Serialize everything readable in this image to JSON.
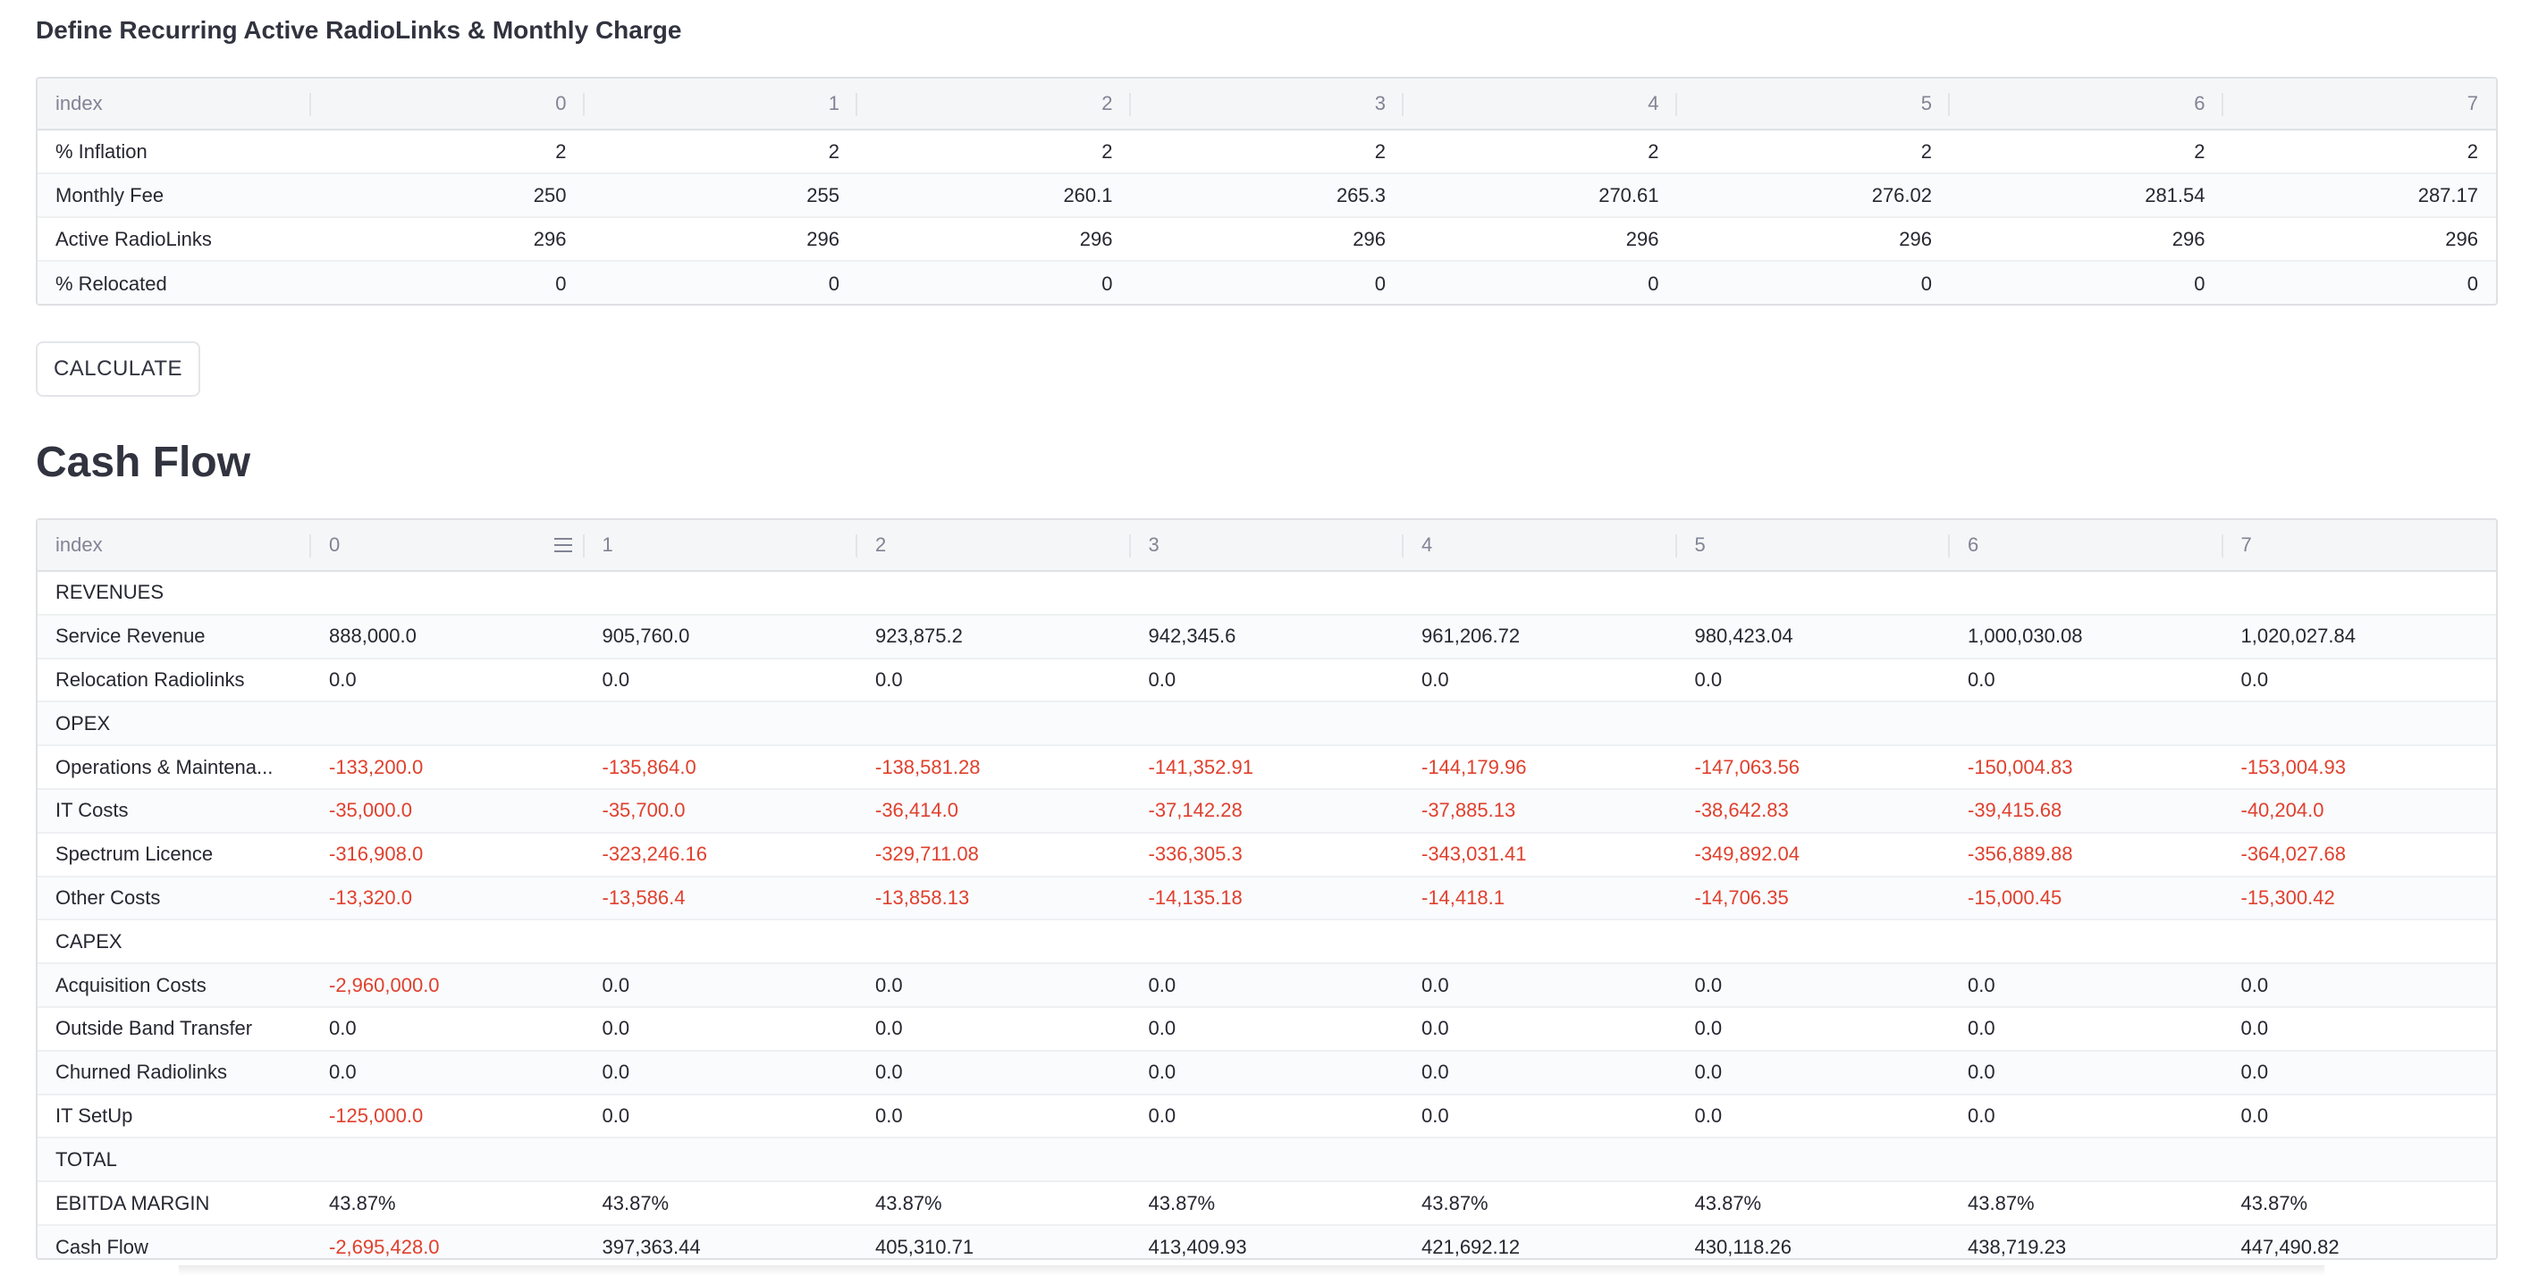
{
  "input_section": {
    "title": "Define Recurring Active RadioLinks & Monthly Charge",
    "columns": [
      "index",
      "0",
      "1",
      "2",
      "3",
      "4",
      "5",
      "6",
      "7"
    ],
    "rows": [
      {
        "label": "% Inflation",
        "values": [
          "2",
          "2",
          "2",
          "2",
          "2",
          "2",
          "2",
          "2"
        ]
      },
      {
        "label": "Monthly Fee",
        "values": [
          "250",
          "255",
          "260.1",
          "265.3",
          "270.61",
          "276.02",
          "281.54",
          "287.17"
        ]
      },
      {
        "label": "Active RadioLinks",
        "values": [
          "296",
          "296",
          "296",
          "296",
          "296",
          "296",
          "296",
          "296"
        ]
      },
      {
        "label": "% Relocated",
        "values": [
          "0",
          "0",
          "0",
          "0",
          "0",
          "0",
          "0",
          "0"
        ]
      }
    ]
  },
  "calculate_button": {
    "label": "CALCULATE"
  },
  "cash_flow": {
    "title": "Cash Flow",
    "columns": [
      "index",
      "0",
      "1",
      "2",
      "3",
      "4",
      "5",
      "6",
      "7"
    ],
    "rows": [
      {
        "label": "REVENUES",
        "values": [
          "",
          "",
          "",
          "",
          "",
          "",
          "",
          ""
        ]
      },
      {
        "label": "Service Revenue",
        "values": [
          "888,000.0",
          "905,760.0",
          "923,875.2",
          "942,345.6",
          "961,206.72",
          "980,423.04",
          "1,000,030.08",
          "1,020,027.84"
        ]
      },
      {
        "label": "Relocation Radiolinks",
        "values": [
          "0.0",
          "0.0",
          "0.0",
          "0.0",
          "0.0",
          "0.0",
          "0.0",
          "0.0"
        ]
      },
      {
        "label": "OPEX",
        "values": [
          "",
          "",
          "",
          "",
          "",
          "",
          "",
          ""
        ]
      },
      {
        "label": "Operations & Maintena...",
        "values": [
          "-133,200.0",
          "-135,864.0",
          "-138,581.28",
          "-141,352.91",
          "-144,179.96",
          "-147,063.56",
          "-150,004.83",
          "-153,004.93"
        ]
      },
      {
        "label": "IT Costs",
        "values": [
          "-35,000.0",
          "-35,700.0",
          "-36,414.0",
          "-37,142.28",
          "-37,885.13",
          "-38,642.83",
          "-39,415.68",
          "-40,204.0"
        ]
      },
      {
        "label": "Spectrum Licence",
        "values": [
          "-316,908.0",
          "-323,246.16",
          "-329,711.08",
          "-336,305.3",
          "-343,031.41",
          "-349,892.04",
          "-356,889.88",
          "-364,027.68"
        ]
      },
      {
        "label": "Other Costs",
        "values": [
          "-13,320.0",
          "-13,586.4",
          "-13,858.13",
          "-14,135.18",
          "-14,418.1",
          "-14,706.35",
          "-15,000.45",
          "-15,300.42"
        ]
      },
      {
        "label": "CAPEX",
        "values": [
          "",
          "",
          "",
          "",
          "",
          "",
          "",
          ""
        ]
      },
      {
        "label": "Acquisition Costs",
        "values": [
          "-2,960,000.0",
          "0.0",
          "0.0",
          "0.0",
          "0.0",
          "0.0",
          "0.0",
          "0.0"
        ]
      },
      {
        "label": "Outside Band Transfer",
        "values": [
          "0.0",
          "0.0",
          "0.0",
          "0.0",
          "0.0",
          "0.0",
          "0.0",
          "0.0"
        ]
      },
      {
        "label": "Churned Radiolinks",
        "values": [
          "0.0",
          "0.0",
          "0.0",
          "0.0",
          "0.0",
          "0.0",
          "0.0",
          "0.0"
        ]
      },
      {
        "label": "IT SetUp",
        "values": [
          "-125,000.0",
          "0.0",
          "0.0",
          "0.0",
          "0.0",
          "0.0",
          "0.0",
          "0.0"
        ]
      },
      {
        "label": "TOTAL",
        "values": [
          "",
          "",
          "",
          "",
          "",
          "",
          "",
          ""
        ]
      },
      {
        "label": "EBITDA MARGIN",
        "values": [
          "43.87%",
          "43.87%",
          "43.87%",
          "43.87%",
          "43.87%",
          "43.87%",
          "43.87%",
          "43.87%"
        ]
      },
      {
        "label": "Cash Flow",
        "values": [
          "-2,695,428.0",
          "397,363.44",
          "405,310.71",
          "413,409.93",
          "421,692.12",
          "430,118.26",
          "438,719.23",
          "447,490.82"
        ]
      }
    ]
  },
  "colors": {
    "negative": "#e0402d",
    "text": "#262730",
    "header_text": "#808495",
    "border": "#dfe1e4"
  },
  "icons": {
    "column_menu": "menu-icon"
  }
}
